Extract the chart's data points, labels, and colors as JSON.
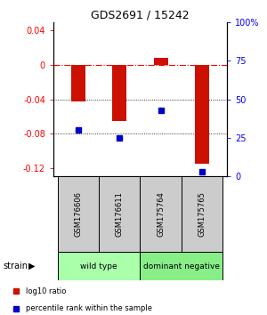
{
  "title": "GDS2691 / 15242",
  "samples": [
    "GSM176606",
    "GSM176611",
    "GSM175764",
    "GSM175765"
  ],
  "log10_ratio": [
    -0.043,
    -0.065,
    0.008,
    -0.115
  ],
  "percentile_rank": [
    0.3,
    0.25,
    0.43,
    0.03
  ],
  "groups": [
    {
      "label": "wild type",
      "samples": [
        0,
        1
      ],
      "color": "#aaffaa"
    },
    {
      "label": "dominant negative",
      "samples": [
        2,
        3
      ],
      "color": "#88ee88"
    }
  ],
  "ylim_left": [
    -0.13,
    0.05
  ],
  "ylim_right": [
    0,
    1.0
  ],
  "yticks_left": [
    -0.12,
    -0.08,
    -0.04,
    0.0,
    0.04
  ],
  "ytick_labels_left": [
    "-0.12",
    "-0.08",
    "-0.04",
    "0",
    "0.04"
  ],
  "yticks_right": [
    0,
    0.25,
    0.5,
    0.75,
    1.0
  ],
  "ytick_labels_right": [
    "0",
    "25",
    "50",
    "75",
    "100%"
  ],
  "bar_color": "#cc1100",
  "dot_color": "#0000cc",
  "hline_y": 0.0,
  "dotted_lines": [
    -0.04,
    -0.08
  ],
  "bar_width": 0.35,
  "legend_items": [
    {
      "label": "log10 ratio",
      "color": "#cc1100"
    },
    {
      "label": "percentile rank within the sample",
      "color": "#0000cc"
    }
  ]
}
